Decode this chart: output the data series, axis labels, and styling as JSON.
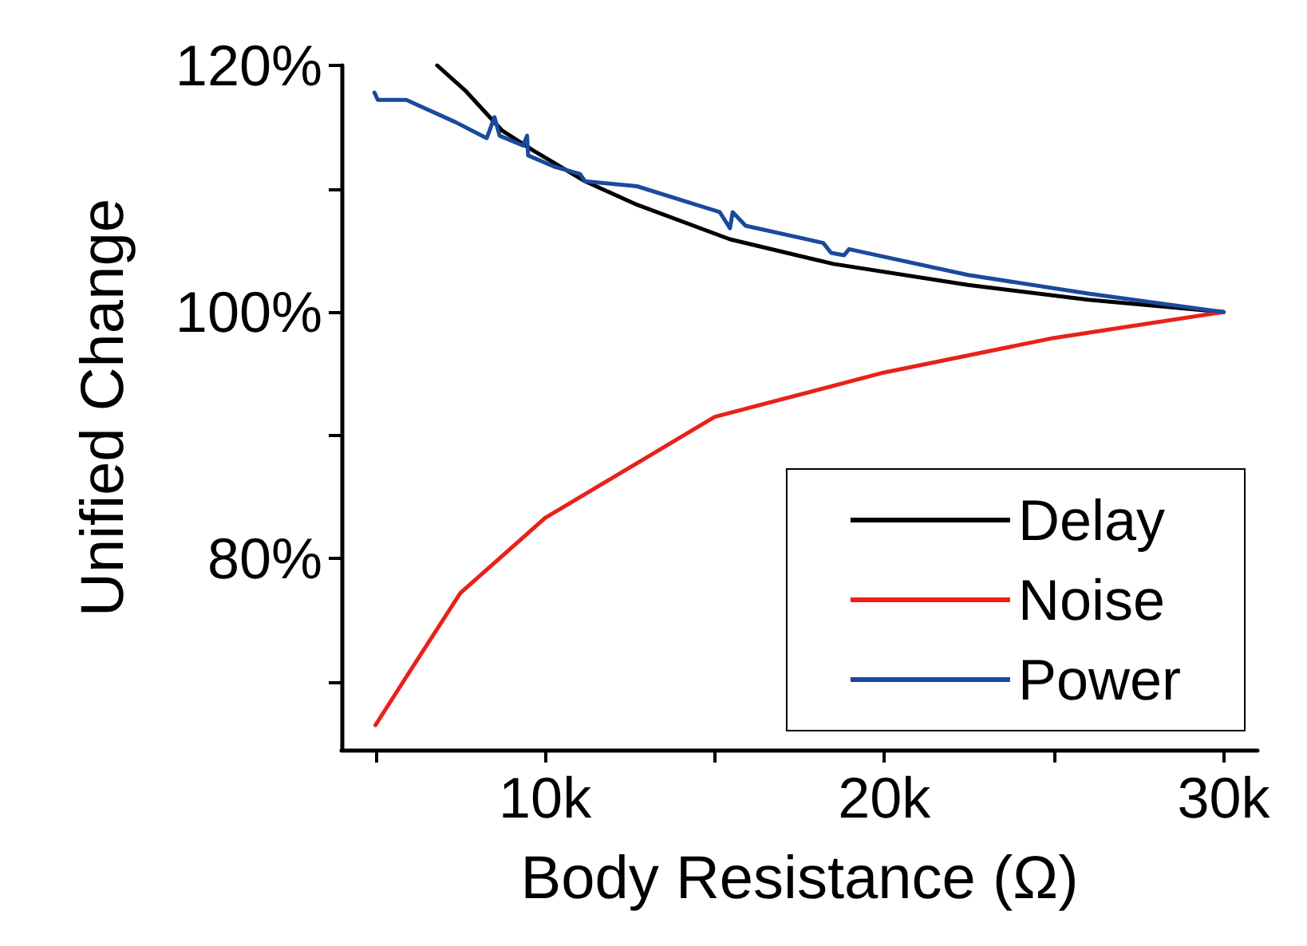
{
  "chart_data": {
    "type": "line",
    "xlabel": "Body Resistance (Ω)",
    "ylabel": "Unified Change",
    "xlim": [
      4000,
      31000
    ],
    "ylim": [
      64.5,
      120
    ],
    "xticks": [
      {
        "value": 5000,
        "label": null
      },
      {
        "value": 10000,
        "label": "10k"
      },
      {
        "value": 15000,
        "label": null
      },
      {
        "value": 20000,
        "label": "20k"
      },
      {
        "value": 25000,
        "label": null
      },
      {
        "value": 30000,
        "label": "30k"
      }
    ],
    "yticks": [
      {
        "value": 70,
        "label": null
      },
      {
        "value": 80,
        "label": "80%"
      },
      {
        "value": 90,
        "label": null
      },
      {
        "value": 100,
        "label": "100%"
      },
      {
        "value": 110,
        "label": null
      },
      {
        "value": 120,
        "label": "120%"
      }
    ],
    "grid": false,
    "legend": "bottom right",
    "marker": "none",
    "line_style": "solid",
    "series": [
      {
        "name": "Delay",
        "color": "#000000",
        "x": [
          6820,
          7670,
          8740,
          9650,
          11180,
          12710,
          15450,
          18500,
          22470,
          26000,
          30000
        ],
        "values": [
          120,
          117.9,
          114.7,
          113.1,
          110.6,
          108.7,
          105.9,
          103.9,
          102.2,
          101.0,
          100
        ]
      },
      {
        "name": "Noise",
        "color": "#e8211b",
        "x": [
          5000,
          6000,
          7500,
          10000,
          15000,
          20000,
          25000,
          30000
        ],
        "values": [
          66.5,
          70.8,
          77.2,
          83.3,
          91.5,
          95.1,
          97.9,
          100
        ]
      },
      {
        "name": "Power",
        "color": "#1a4a9c",
        "x": [
          4970,
          5070,
          5910,
          7360,
          8280,
          8510,
          8660,
          9350,
          9470,
          9500,
          10260,
          11030,
          11180,
          12710,
          15150,
          15450,
          15530,
          15910,
          18200,
          18430,
          18810,
          18960,
          22470,
          26000,
          30000
        ],
        "values": [
          117.8,
          117.2,
          117.2,
          115.4,
          114.1,
          115.8,
          114.3,
          113.5,
          114.3,
          112.7,
          111.8,
          111.2,
          110.6,
          110.2,
          108.1,
          106.8,
          108.1,
          107.0,
          105.6,
          104.8,
          104.6,
          105.1,
          103.0,
          101.5,
          100
        ]
      }
    ]
  }
}
